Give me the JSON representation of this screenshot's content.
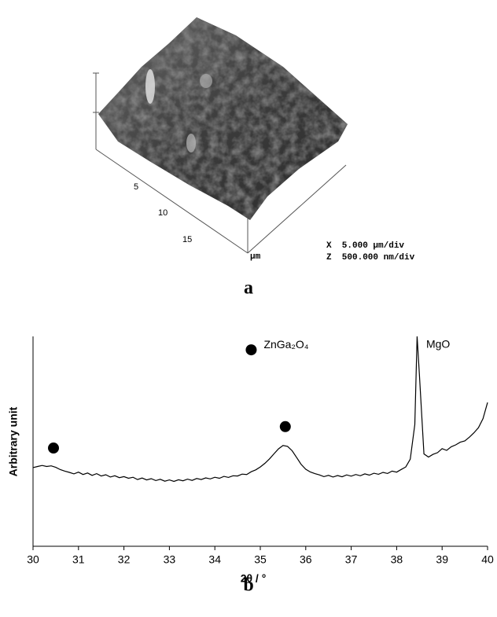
{
  "afm_panel": {
    "panel_label": "a",
    "axis_ticks": [
      "5",
      "10",
      "15"
    ],
    "axis_unit": "μm",
    "x_scale": "X  5.000 μm/div",
    "z_scale": "Z  500.000 nm/div"
  },
  "chart_data": {
    "type": "line",
    "panel_label": "b",
    "x_label": "2θ / °",
    "y_label": "Arbitrary unit",
    "color": "#000000",
    "xlim": [
      30,
      40
    ],
    "xticks": [
      30,
      31,
      32,
      33,
      34,
      35,
      36,
      37,
      38,
      39,
      40
    ],
    "ylim": [
      0,
      100
    ],
    "x": [
      30.0,
      30.1,
      30.2,
      30.3,
      30.4,
      30.5,
      30.6,
      30.7,
      30.8,
      30.9,
      31.0,
      31.1,
      31.2,
      31.3,
      31.4,
      31.5,
      31.6,
      31.7,
      31.8,
      31.9,
      32.0,
      32.1,
      32.2,
      32.3,
      32.4,
      32.5,
      32.6,
      32.7,
      32.8,
      32.9,
      33.0,
      33.1,
      33.2,
      33.3,
      33.4,
      33.5,
      33.6,
      33.7,
      33.8,
      33.9,
      34.0,
      34.1,
      34.2,
      34.3,
      34.4,
      34.5,
      34.6,
      34.7,
      34.8,
      34.9,
      35.0,
      35.1,
      35.2,
      35.3,
      35.4,
      35.5,
      35.6,
      35.7,
      35.8,
      35.9,
      36.0,
      36.1,
      36.2,
      36.3,
      36.4,
      36.5,
      36.6,
      36.7,
      36.8,
      36.9,
      37.0,
      37.1,
      37.2,
      37.3,
      37.4,
      37.5,
      37.6,
      37.7,
      37.8,
      37.9,
      38.0,
      38.1,
      38.2,
      38.3,
      38.4,
      38.45,
      38.5,
      38.6,
      38.7,
      38.8,
      38.9,
      39.0,
      39.1,
      39.2,
      39.3,
      39.4,
      39.5,
      39.6,
      39.7,
      39.8,
      39.9,
      40.0
    ],
    "values": [
      37.5,
      38,
      38.5,
      38,
      38.3,
      37.6,
      36.5,
      35.8,
      35.2,
      34.5,
      35.3,
      34.2,
      34.9,
      33.8,
      34.6,
      33.5,
      34.1,
      33.0,
      33.6,
      32.7,
      33.2,
      32.4,
      32.9,
      31.8,
      32.5,
      31.6,
      32.2,
      31.3,
      31.9,
      31.0,
      31.6,
      30.9,
      31.7,
      31.2,
      32.0,
      31.4,
      32.3,
      31.8,
      32.6,
      32.1,
      32.9,
      32.4,
      33.3,
      32.8,
      33.6,
      33.5,
      34.4,
      34.2,
      35.5,
      36.4,
      37.8,
      39.5,
      41.6,
      44.0,
      46.4,
      48.0,
      47.6,
      45.5,
      42.3,
      39.0,
      36.7,
      35.4,
      34.6,
      34.0,
      33.2,
      33.8,
      33.0,
      33.7,
      33.1,
      34.0,
      33.4,
      34.2,
      33.6,
      34.5,
      33.9,
      34.8,
      34.3,
      35.2,
      34.7,
      35.8,
      35.3,
      36.6,
      37.8,
      41.5,
      58,
      100,
      82,
      44,
      42.5,
      43.8,
      44.6,
      46.5,
      45.7,
      47.4,
      48.3,
      49.6,
      50.2,
      52.0,
      54.1,
      56.5,
      60.8,
      68.5
    ],
    "markers": {
      "name": "ZnGa₂O₄",
      "color": "#000000",
      "x": [
        30.45,
        35.55
      ],
      "values": [
        46.8,
        57
      ]
    },
    "legend_marker": {
      "x": 34.8,
      "value": 93.6
    },
    "annotations": [
      {
        "text": "MgO",
        "x": 38.65,
        "value": 96
      }
    ]
  }
}
